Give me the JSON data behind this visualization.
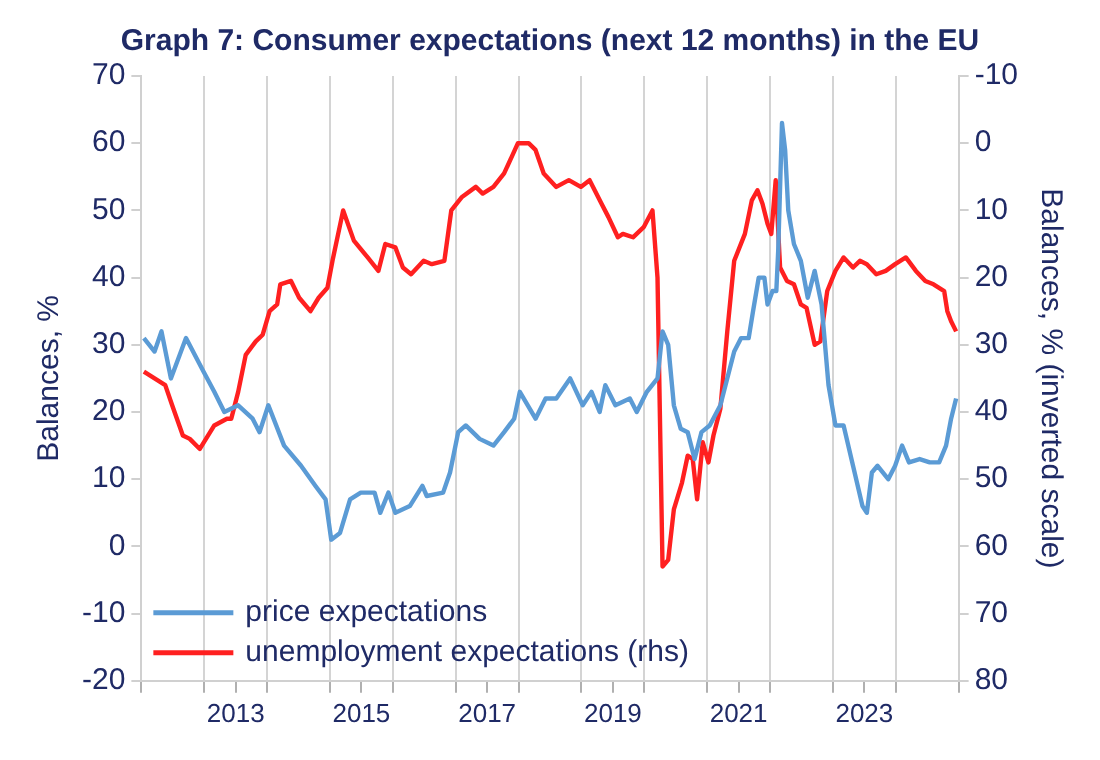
{
  "chart_data": {
    "type": "line",
    "title": "Graph 7: Consumer expectations (next 12 months) in the EU",
    "ylabel": "Balances, %",
    "y2label": "Balances, % (inverted scale)",
    "xlim": [
      2012,
      2025
    ],
    "xticks": [
      {
        "value": 2012,
        "label": null
      },
      {
        "value": 2013,
        "label": null
      },
      {
        "value": 2013.5,
        "label": "2013"
      },
      {
        "value": 2014,
        "label": null
      },
      {
        "value": 2015,
        "label": null
      },
      {
        "value": 2015.5,
        "label": "2015"
      },
      {
        "value": 2016,
        "label": null
      },
      {
        "value": 2017,
        "label": null
      },
      {
        "value": 2017.5,
        "label": "2017"
      },
      {
        "value": 2018,
        "label": null
      },
      {
        "value": 2019,
        "label": null
      },
      {
        "value": 2019.5,
        "label": "2019"
      },
      {
        "value": 2020,
        "label": null
      },
      {
        "value": 2021,
        "label": null
      },
      {
        "value": 2021.5,
        "label": "2021"
      },
      {
        "value": 2022,
        "label": null
      },
      {
        "value": 2023,
        "label": null
      },
      {
        "value": 2023.5,
        "label": "2023"
      },
      {
        "value": 2024,
        "label": null
      },
      {
        "value": 2025,
        "label": null
      }
    ],
    "ylim": [
      -20,
      70
    ],
    "yticks": [
      -20,
      -10,
      0,
      10,
      20,
      30,
      40,
      50,
      60,
      70
    ],
    "y2lim": [
      80,
      -10
    ],
    "y2ticks": [
      80,
      70,
      60,
      50,
      40,
      30,
      20,
      10,
      0,
      -10
    ],
    "grid": "x",
    "legend": "bottom left",
    "series": [
      {
        "name": "price expectations",
        "color": "#5b9bd5",
        "x": [
          2012.04,
          2012.21,
          2012.32,
          2012.47,
          2012.71,
          2012.99,
          2013.16,
          2013.32,
          2013.54,
          2013.77,
          2013.88,
          2014.02,
          2014.27,
          2014.54,
          2014.77,
          2014.93,
          2015.02,
          2015.16,
          2015.32,
          2015.49,
          2015.71,
          2015.8,
          2015.93,
          2016.04,
          2016.27,
          2016.47,
          2016.54,
          2016.8,
          2016.91,
          2017.04,
          2017.16,
          2017.38,
          2017.6,
          2017.77,
          2017.93,
          2018.02,
          2018.27,
          2018.43,
          2018.6,
          2018.82,
          2019.02,
          2019.16,
          2019.29,
          2019.38,
          2019.54,
          2019.77,
          2019.88,
          2020.04,
          2020.21,
          2020.29,
          2020.38,
          2020.47,
          2020.58,
          2020.69,
          2020.8,
          2020.91,
          2021.04,
          2021.21,
          2021.43,
          2021.54,
          2021.66,
          2021.73,
          2021.82,
          2021.91,
          2021.96,
          2022.04,
          2022.1,
          2022.13,
          2022.19,
          2022.24,
          2022.29,
          2022.38,
          2022.49,
          2022.6,
          2022.71,
          2022.82,
          2022.93,
          2023.04,
          2023.17,
          2023.32,
          2023.47,
          2023.54,
          2023.62,
          2023.71,
          2023.88,
          2023.99,
          2024.1,
          2024.21,
          2024.38,
          2024.54,
          2024.69,
          2024.8,
          2024.88,
          2024.96
        ],
        "values": [
          31,
          29,
          32,
          25,
          31,
          26,
          23,
          20,
          21,
          19,
          17,
          21,
          15,
          12,
          9,
          7,
          1,
          2,
          7,
          8,
          8,
          5,
          8,
          5,
          6,
          9,
          7.5,
          8,
          11,
          17,
          18,
          16,
          15,
          17,
          19,
          23,
          19,
          22,
          22,
          25,
          21,
          23,
          20,
          24,
          21,
          22,
          20,
          23,
          25,
          32,
          30,
          21,
          17.5,
          17,
          13,
          17,
          18,
          21,
          29,
          31,
          31,
          35,
          40,
          40,
          36,
          38,
          38,
          44,
          63,
          59,
          50,
          45,
          42.5,
          37,
          41,
          36,
          24,
          18,
          18,
          12,
          6,
          5,
          11,
          12,
          10,
          12,
          15,
          12.5,
          13,
          12.5,
          12.5,
          15,
          19,
          22
        ]
      },
      {
        "name": "unemployment expectations (rhs)",
        "color": "#ff2020",
        "axis": "y2",
        "x": [
          2012.04,
          2012.21,
          2012.38,
          2012.49,
          2012.66,
          2012.77,
          2012.93,
          2013.16,
          2013.36,
          2013.43,
          2013.54,
          2013.66,
          2013.82,
          2013.93,
          2014.04,
          2014.16,
          2014.21,
          2014.38,
          2014.51,
          2014.69,
          2014.82,
          2014.96,
          2015.04,
          2015.21,
          2015.38,
          2015.6,
          2015.77,
          2015.88,
          2016.04,
          2016.16,
          2016.29,
          2016.49,
          2016.62,
          2016.82,
          2016.93,
          2017.1,
          2017.32,
          2017.43,
          2017.6,
          2017.77,
          2017.99,
          2018.16,
          2018.27,
          2018.4,
          2018.6,
          2018.8,
          2018.99,
          2019.13,
          2019.32,
          2019.43,
          2019.58,
          2019.66,
          2019.82,
          2019.99,
          2020.13,
          2020.21,
          2020.29,
          2020.38,
          2020.47,
          2020.6,
          2020.69,
          2020.77,
          2020.84,
          2020.93,
          2021.02,
          2021.1,
          2021.21,
          2021.32,
          2021.43,
          2021.6,
          2021.71,
          2021.8,
          2021.88,
          2021.96,
          2022.02,
          2022.09,
          2022.16,
          2022.27,
          2022.38,
          2022.49,
          2022.58,
          2022.71,
          2022.8,
          2022.91,
          2023.04,
          2023.17,
          2023.32,
          2023.43,
          2023.54,
          2023.69,
          2023.84,
          2023.99,
          2024.16,
          2024.32,
          2024.47,
          2024.6,
          2024.77,
          2024.82,
          2024.88,
          2024.96
        ],
        "values": [
          34,
          35,
          36,
          39,
          43.5,
          44,
          45.5,
          42,
          41,
          41,
          37,
          31.5,
          29.5,
          28.5,
          25,
          24,
          21,
          20.5,
          23,
          25,
          23,
          21.5,
          17.5,
          10,
          14.5,
          17,
          19,
          15,
          15.5,
          18.5,
          19.5,
          17.5,
          18,
          17.5,
          10,
          8,
          6.5,
          7.5,
          6.5,
          4.5,
          0,
          0,
          1,
          4.5,
          6.5,
          5.5,
          6.5,
          5.5,
          9,
          11,
          14,
          13.5,
          14,
          12.5,
          10,
          20,
          63,
          62,
          54.5,
          50.5,
          46.5,
          47,
          53,
          44.5,
          47.5,
          43.5,
          39.5,
          28,
          17.5,
          13.5,
          8.5,
          7,
          9,
          12,
          13.5,
          5.5,
          18.5,
          20.5,
          21,
          24,
          24.5,
          30,
          29.5,
          22,
          19,
          17,
          18.5,
          17.5,
          18,
          19.5,
          19,
          18,
          17,
          19,
          20.5,
          21,
          22,
          25,
          26.5,
          28
        ]
      }
    ]
  }
}
